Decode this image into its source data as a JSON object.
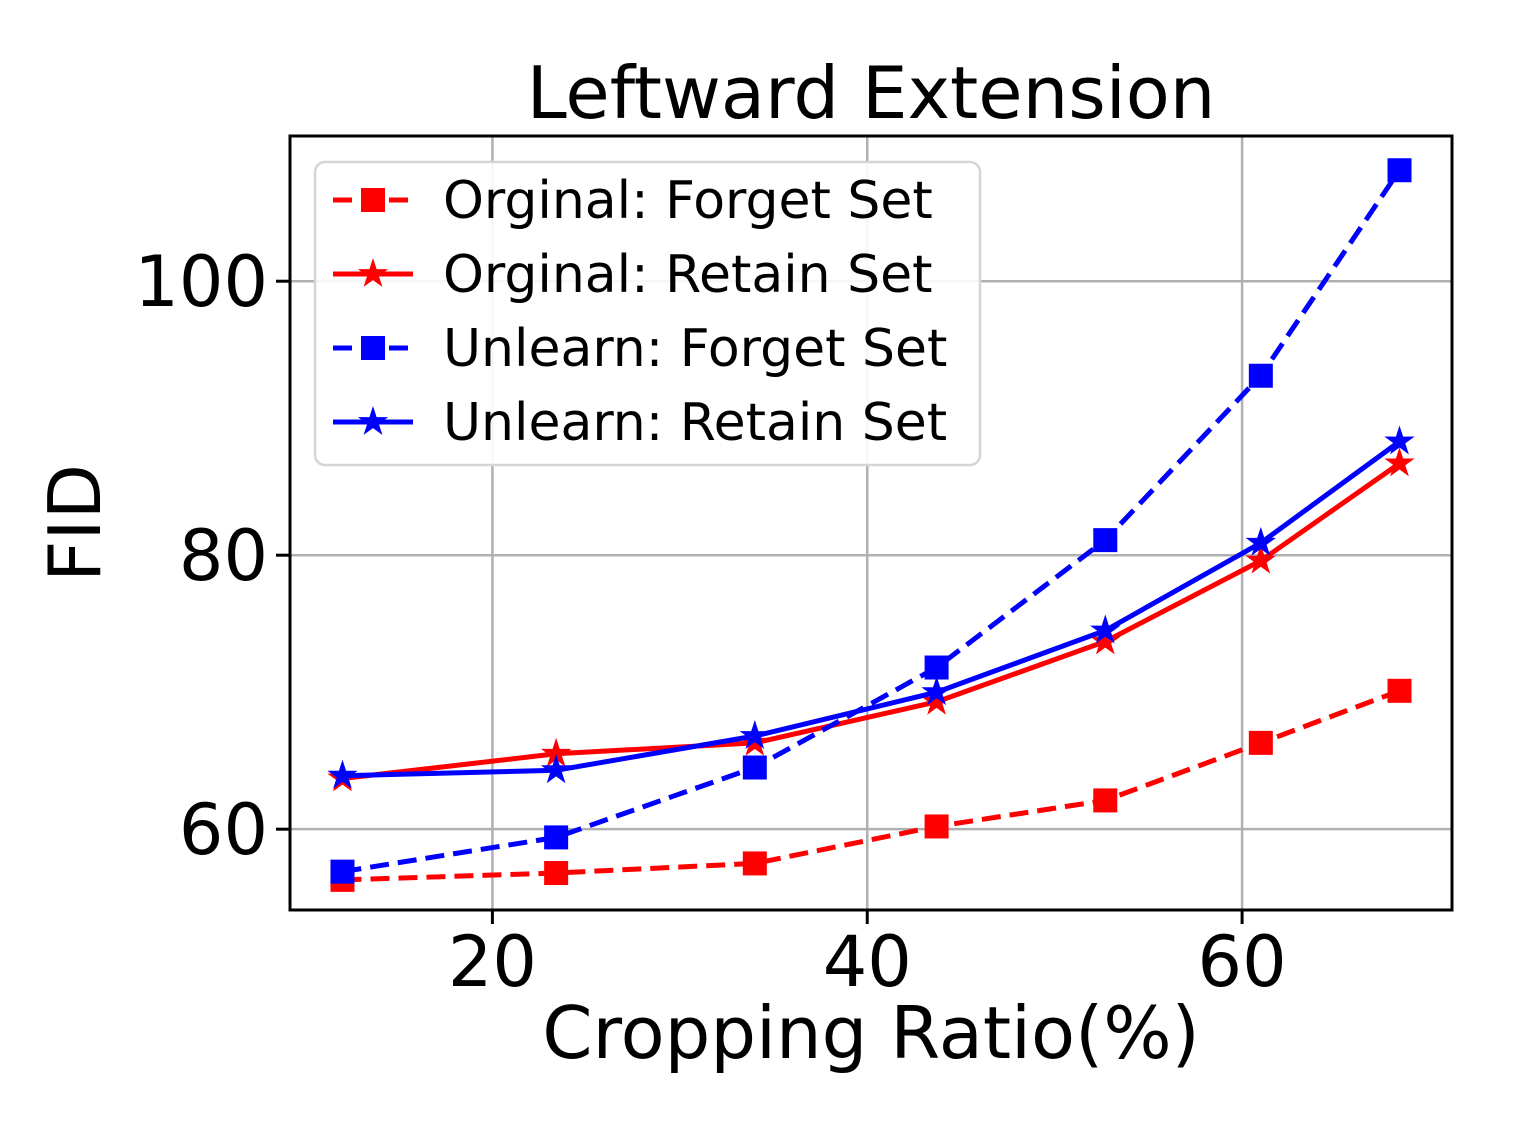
{
  "chart_data": {
    "type": "line",
    "title": "Leftward Extension",
    "xlabel": "Cropping Ratio(%)",
    "ylabel": "FID",
    "x": [
      12.0,
      23.4,
      34.0,
      43.7,
      52.7,
      61.0,
      68.4
    ],
    "series": [
      {
        "name": "Orginal: Forget Set",
        "color": "#ff0000",
        "line_style": "dashed",
        "marker": "square",
        "values": [
          56.3,
          56.8,
          57.5,
          60.2,
          62.1,
          66.3,
          70.1
        ]
      },
      {
        "name": "Orginal: Retain Set",
        "color": "#ff0000",
        "line_style": "solid",
        "marker": "star",
        "values": [
          63.7,
          65.5,
          66.3,
          69.3,
          73.7,
          79.6,
          86.7
        ]
      },
      {
        "name": "Unlearn: Forget Set",
        "color": "#0000ff",
        "line_style": "dashed",
        "marker": "square",
        "values": [
          56.9,
          59.4,
          64.5,
          71.8,
          81.1,
          93.1,
          108.1
        ]
      },
      {
        "name": "Unlearn: Retain Set",
        "color": "#0000ff",
        "line_style": "solid",
        "marker": "star",
        "values": [
          63.9,
          64.3,
          66.8,
          70.0,
          74.5,
          80.9,
          88.3
        ]
      }
    ],
    "xticks": [
      20,
      40,
      60
    ],
    "yticks": [
      60,
      80,
      100
    ],
    "xlim": [
      9.2,
      71.2
    ],
    "ylim": [
      54.1,
      110.6
    ],
    "grid": true,
    "legend_position": "upper-left",
    "colors": {
      "red_series": "#ff0000",
      "blue_series": "#0000ff",
      "grid": "#b0b0b0",
      "spine": "#000000",
      "text": "#000000",
      "legend_border": "#d5d5d5",
      "background": "#ffffff"
    }
  }
}
